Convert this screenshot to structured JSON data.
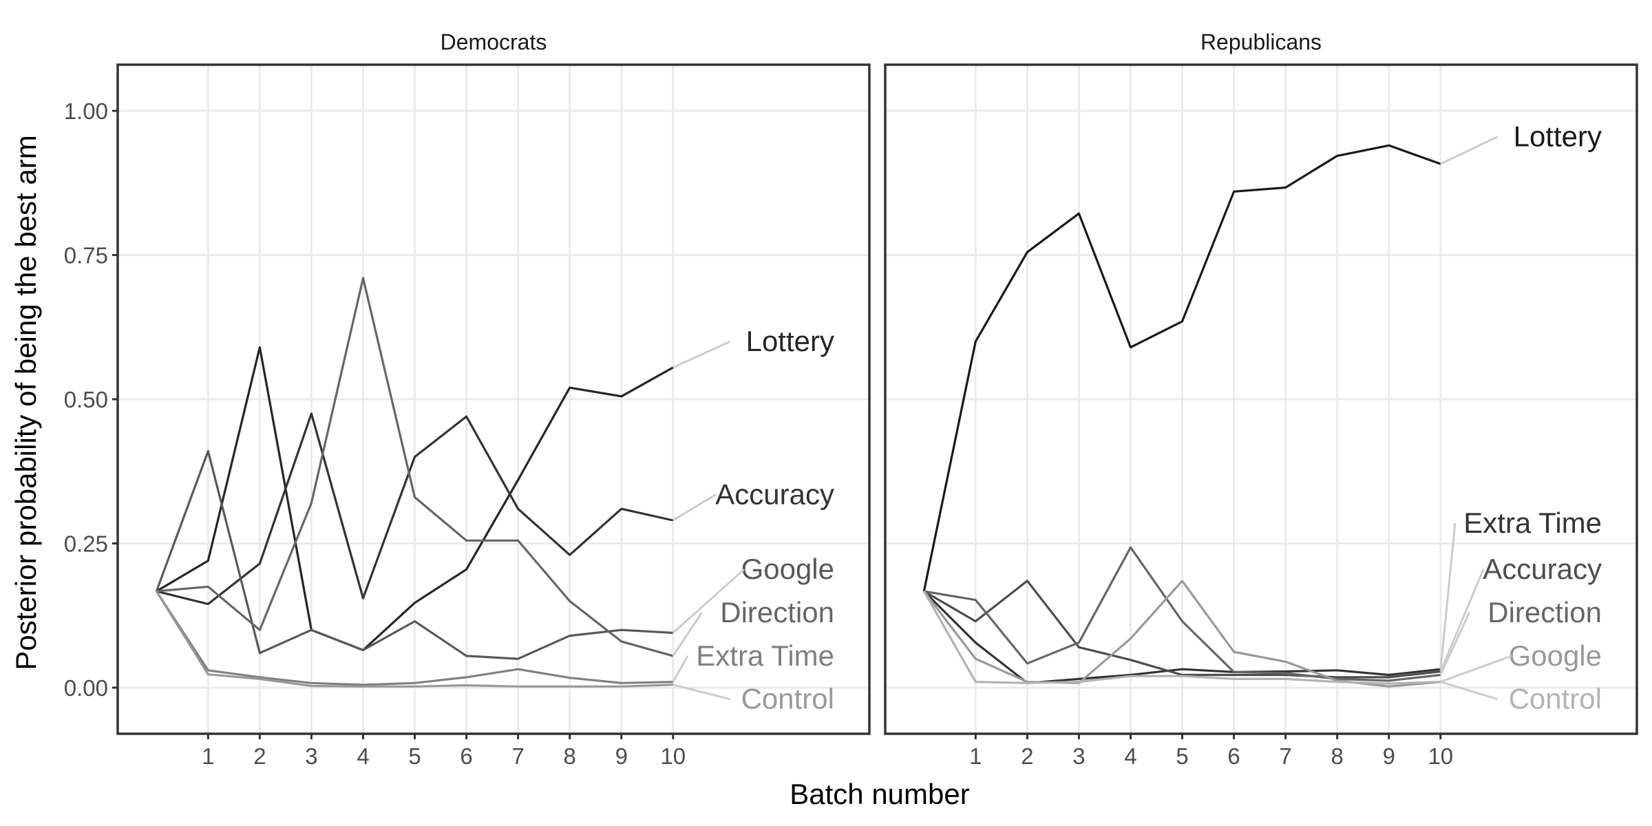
{
  "chart_data": {
    "type": "line",
    "xlabel": "Batch number",
    "ylabel": "Posterior probability of being the best arm",
    "ylim": [
      -0.08,
      1.08
    ],
    "xlim": [
      -0.75,
      13.8
    ],
    "x_ticks": [
      1,
      2,
      3,
      4,
      5,
      6,
      7,
      8,
      9,
      10
    ],
    "y_ticks": [
      {
        "value": 0,
        "label": "0.00"
      },
      {
        "value": 0.25,
        "label": "0.25"
      },
      {
        "value": 0.5,
        "label": "0.50"
      },
      {
        "value": 0.75,
        "label": "0.75"
      },
      {
        "value": 1,
        "label": "1.00"
      }
    ],
    "grid": true,
    "x": [
      0,
      1,
      2,
      3,
      4,
      5,
      6,
      7,
      8,
      9,
      10
    ],
    "panels": [
      {
        "title": "Democrats",
        "series": [
          {
            "name": "Lottery",
            "color": "#262626",
            "values": [
              0.167,
              0.22,
              0.59,
              0.1,
              0.065,
              0.147,
              0.205,
              0.36,
              0.52,
              0.505,
              0.555
            ],
            "label_y": 0.6
          },
          {
            "name": "Accuracy",
            "color": "#333333",
            "values": [
              0.167,
              0.145,
              0.215,
              0.475,
              0.155,
              0.4,
              0.47,
              0.31,
              0.23,
              0.31,
              0.29
            ],
            "label_y": 0.335
          },
          {
            "name": "Google",
            "color": "#595959",
            "values": [
              0.167,
              0.41,
              0.06,
              0.1,
              0.065,
              0.115,
              0.055,
              0.05,
              0.09,
              0.1,
              0.095
            ],
            "label_y": 0.205
          },
          {
            "name": "Direction",
            "color": "#666666",
            "values": [
              0.167,
              0.175,
              0.1,
              0.32,
              0.71,
              0.33,
              0.255,
              0.255,
              0.15,
              0.08,
              0.055
            ],
            "label_y": 0.13
          },
          {
            "name": "Extra Time",
            "color": "#808080",
            "values": [
              0.167,
              0.03,
              0.018,
              0.008,
              0.005,
              0.008,
              0.018,
              0.032,
              0.017,
              0.008,
              0.01
            ],
            "label_y": 0.055
          },
          {
            "name": "Control",
            "color": "#999999",
            "values": [
              0.167,
              0.023,
              0.015,
              0.003,
              0.002,
              0.002,
              0.004,
              0.002,
              0.002,
              0.002,
              0.005
            ],
            "label_y": -0.02
          }
        ]
      },
      {
        "title": "Republicans",
        "series": [
          {
            "name": "Lottery",
            "color": "#1a1a1a",
            "values": [
              0.167,
              0.6,
              0.755,
              0.822,
              0.59,
              0.635,
              0.86,
              0.867,
              0.922,
              0.94,
              0.908
            ],
            "label_y": 0.955
          },
          {
            "name": "Extra Time",
            "color": "#333333",
            "values": [
              0.167,
              0.078,
              0.008,
              0.015,
              0.022,
              0.032,
              0.027,
              0.028,
              0.03,
              0.022,
              0.032
            ],
            "label_y": 0.285
          },
          {
            "name": "Accuracy",
            "color": "#4d4d4d",
            "values": [
              0.167,
              0.115,
              0.185,
              0.07,
              0.048,
              0.022,
              0.022,
              0.022,
              0.018,
              0.018,
              0.028
            ],
            "label_y": 0.205
          },
          {
            "name": "Direction",
            "color": "#666666",
            "values": [
              0.167,
              0.152,
              0.042,
              0.078,
              0.243,
              0.115,
              0.027,
              0.025,
              0.015,
              0.012,
              0.022
            ],
            "label_y": 0.13
          },
          {
            "name": "Google",
            "color": "#999999",
            "values": [
              0.167,
              0.05,
              0.01,
              0.008,
              0.085,
              0.185,
              0.062,
              0.045,
              0.012,
              0.002,
              0.01
            ],
            "label_y": 0.055
          },
          {
            "name": "Control",
            "color": "#b3b3b3",
            "values": [
              0.167,
              0.01,
              0.008,
              0.01,
              0.02,
              0.02,
              0.015,
              0.015,
              0.01,
              0.007,
              0.01
            ],
            "label_y": -0.02
          }
        ]
      }
    ]
  }
}
